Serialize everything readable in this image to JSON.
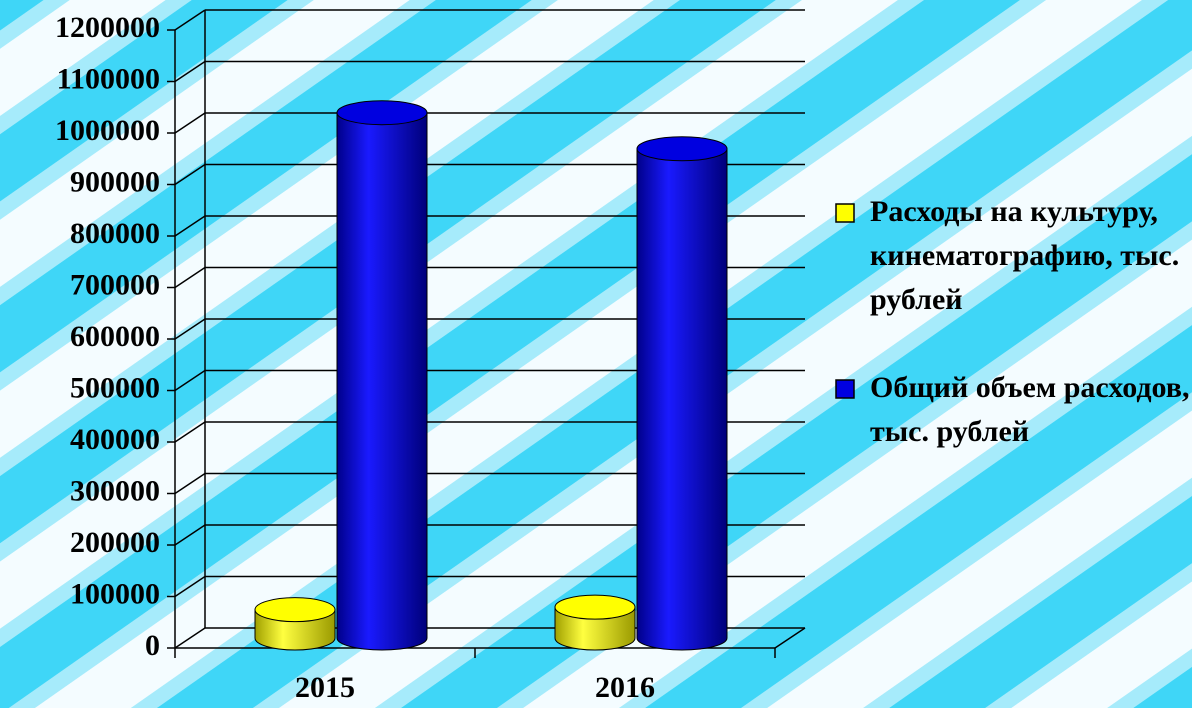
{
  "chart_data": {
    "type": "bar3d",
    "categories": [
      "2015",
      "2016"
    ],
    "series": [
      {
        "name": "Расходы на культуру, кинематографию, тыс. рублей",
        "color": "#ffff00",
        "values": [
          55000,
          60000
        ]
      },
      {
        "name": "Общий объем расходов, тыс. рублей",
        "color": "#0000e0",
        "values": [
          1020000,
          950000
        ]
      }
    ],
    "ylim": [
      0,
      1200000
    ],
    "yticks": [
      0,
      100000,
      200000,
      300000,
      400000,
      500000,
      600000,
      700000,
      800000,
      900000,
      1000000,
      1100000,
      1200000
    ],
    "grid": true,
    "legend": "right"
  }
}
